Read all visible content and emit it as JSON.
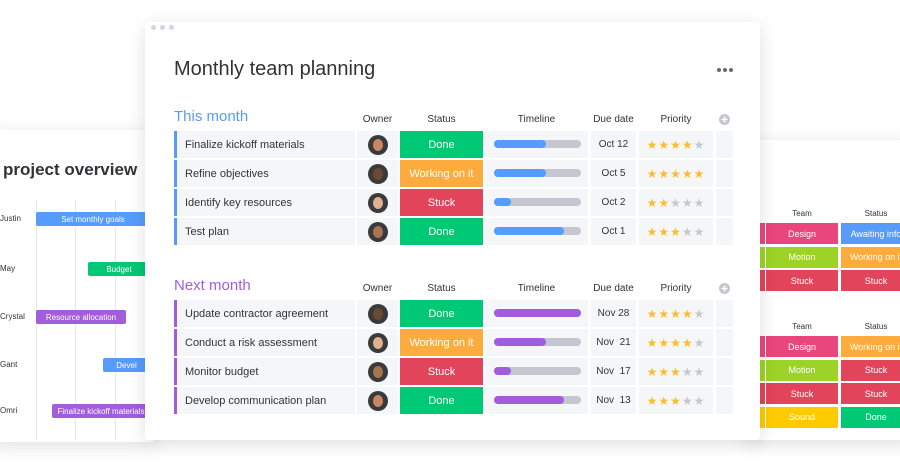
{
  "overview": {
    "title": "project overview",
    "rows": [
      {
        "owner": "Justin",
        "bar": "Set monthly goals",
        "color": "#579bfc"
      },
      {
        "owner": "May",
        "bar": "Budget",
        "color": "#00c875"
      },
      {
        "owner": "Crystal",
        "bar": "Resource allocation",
        "color": "#a25ddc"
      },
      {
        "owner": "Gant",
        "bar": "Devel",
        "color": "#579bfc"
      },
      {
        "owner": "Omri",
        "bar": "Finalize kickoff materials",
        "color": "#a25ddc"
      }
    ]
  },
  "side_tables": [
    {
      "columns": [
        "Team",
        "Status"
      ],
      "rows": [
        {
          "team": "Design",
          "team_color": "#e8467c",
          "status": "Awaiting info",
          "status_color": "#579bfc"
        },
        {
          "team": "Motion",
          "team_color": "#9cd326",
          "status": "Working on it",
          "status_color": "#fdab3d"
        },
        {
          "team": "Stuck",
          "team_color": "#e2445c",
          "status": "Stuck",
          "status_color": "#e2445c"
        }
      ]
    },
    {
      "columns": [
        "Team",
        "Status"
      ],
      "rows": [
        {
          "team": "Design",
          "team_color": "#e8467c",
          "status": "Working on it",
          "status_color": "#fdab3d"
        },
        {
          "team": "Motion",
          "team_color": "#9cd326",
          "status": "Stuck",
          "status_color": "#e2445c"
        },
        {
          "team": "Stuck",
          "team_color": "#e2445c",
          "status": "Stuck",
          "status_color": "#e2445c"
        },
        {
          "team": "Sound",
          "team_color": "#ffcb00",
          "status": "Done",
          "status_color": "#00c875"
        }
      ]
    }
  ],
  "board": {
    "title": "Monthly team planning",
    "columns": [
      "Owner",
      "Status",
      "Timeline",
      "Due date",
      "Priority"
    ],
    "groups": [
      {
        "name": "This month",
        "color": "#579bfc",
        "rows": [
          {
            "task": "Finalize kickoff materials",
            "status": "Done",
            "status_color": "#00c875",
            "timeline": 60,
            "due": "Oct 12",
            "priority": 4
          },
          {
            "task": "Refine objectives",
            "status": "Working on it",
            "status_color": "#fdab3d",
            "timeline": 60,
            "due": "Oct 5",
            "priority": 5
          },
          {
            "task": "Identify key resources",
            "status": "Stuck",
            "status_color": "#e2445c",
            "timeline": 20,
            "due": "Oct 2",
            "priority": 2
          },
          {
            "task": "Test plan",
            "status": "Done",
            "status_color": "#00c875",
            "timeline": 80,
            "due": "Oct 1",
            "priority": 3
          }
        ]
      },
      {
        "name": "Next month",
        "color": "#a25ddc",
        "rows": [
          {
            "task": "Update contractor agreement",
            "status": "Done",
            "status_color": "#00c875",
            "timeline": 100,
            "due": "Nov 28",
            "priority": 4
          },
          {
            "task": "Conduct a risk assessment",
            "status": "Working on it",
            "status_color": "#fdab3d",
            "timeline": 60,
            "due": "Nov  21",
            "priority": 4
          },
          {
            "task": "Monitor budget",
            "status": "Stuck",
            "status_color": "#e2445c",
            "timeline": 20,
            "due": "Nov  17",
            "priority": 3
          },
          {
            "task": "Develop communication plan",
            "status": "Done",
            "status_color": "#00c875",
            "timeline": 80,
            "due": "Nov  13",
            "priority": 3
          }
        ]
      }
    ]
  }
}
